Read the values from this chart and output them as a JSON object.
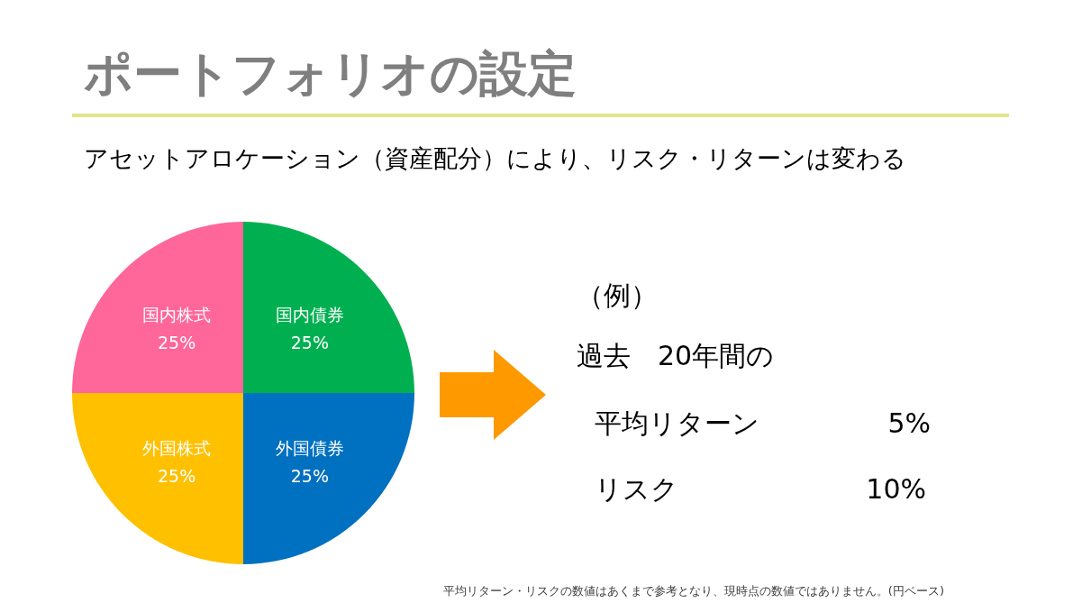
{
  "chart_data": {
    "type": "pie",
    "title": "ポートフォリオの設定",
    "subtitle": "アセットアロケーション（資産配分）により、リスク・リターンは変わる",
    "categories": [
      "国内債券",
      "外国債券",
      "外国株式",
      "国内株式"
    ],
    "values": [
      25,
      25,
      25,
      25
    ],
    "colors": [
      "#00b050",
      "#0070c0",
      "#ffc000",
      "#ff6699"
    ],
    "value_labels": [
      "25%",
      "25%",
      "25%",
      "25%"
    ],
    "annotations": [
      "（例）",
      "過去　20年間の",
      "平均リターン",
      "5%",
      "リスク",
      "10%",
      "平均リターン・リスクの数値はあくまで参考となり、現時点の数値ではありません。(円ベース)"
    ]
  }
}
